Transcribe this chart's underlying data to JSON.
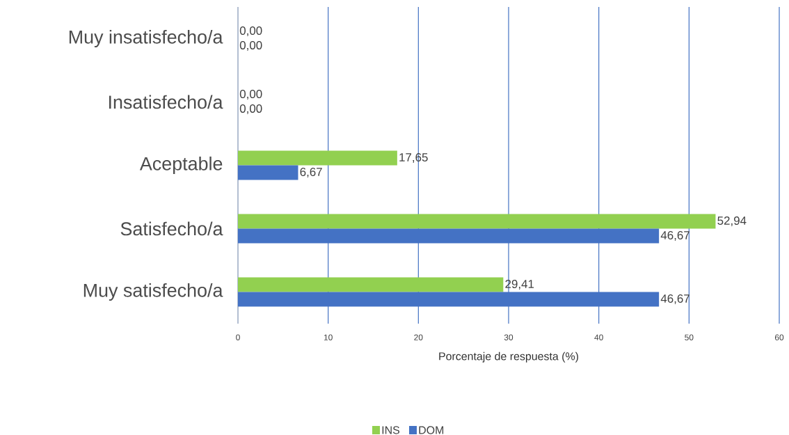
{
  "chart_data": {
    "type": "bar",
    "orientation": "horizontal",
    "xlabel": "Porcentaje de respuesta (%)",
    "categories": [
      "Muy insatisfecho/a",
      "Insatisfecho/a",
      "Aceptable",
      "Satisfecho/a",
      "Muy satisfecho/a"
    ],
    "series": [
      {
        "name": "INS",
        "color": "#92d050",
        "values": [
          0,
          0,
          17.65,
          52.94,
          29.41
        ],
        "value_labels": [
          "0,00",
          "0,00",
          "17,65",
          "52,94",
          "29,41"
        ]
      },
      {
        "name": "DOM",
        "color": "#4472c4",
        "values": [
          0,
          0,
          6.67,
          46.67,
          46.67
        ],
        "value_labels": [
          "0,00",
          "0,00",
          "6,67",
          "46,67",
          "46,67"
        ]
      }
    ],
    "xlim": [
      0,
      60
    ],
    "xticks": [
      0,
      10,
      20,
      30,
      40,
      50,
      60
    ],
    "grid": "x",
    "legend": "bottom"
  }
}
